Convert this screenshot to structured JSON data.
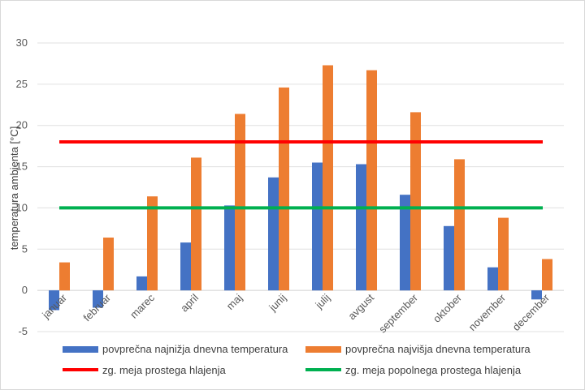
{
  "chart_data": {
    "type": "bar",
    "title": "",
    "xlabel": "",
    "ylabel": "temperatura ambienta [°C]",
    "ylim": [
      -5,
      30
    ],
    "yticks": [
      "-5",
      "0",
      "5",
      "10",
      "15",
      "20",
      "25",
      "30"
    ],
    "grid": true,
    "legend_position": "bottom",
    "categories": [
      "januar",
      "februar",
      "marec",
      "april",
      "maj",
      "junij",
      "julij",
      "avgust",
      "september",
      "oktober",
      "november",
      "december"
    ],
    "series": [
      {
        "name": "povprečna najnižja dnevna temperatura",
        "color": "#4472c4",
        "values": [
          -2.4,
          -2.1,
          1.7,
          5.8,
          10.3,
          13.7,
          15.5,
          15.3,
          11.6,
          7.8,
          2.8,
          -1.1
        ]
      },
      {
        "name": "povprečna najvišja dnevna temperatura",
        "color": "#ed7d31",
        "values": [
          3.4,
          6.4,
          11.4,
          16.1,
          21.4,
          24.6,
          27.3,
          26.7,
          21.6,
          15.9,
          8.8,
          3.8
        ]
      }
    ],
    "reference_lines": [
      {
        "name": "zg. meja prostega hlajenja",
        "value": 18,
        "color": "#ff0000"
      },
      {
        "name": "zg. meja popolnega prostega hlajenja",
        "value": 10,
        "color": "#00b050"
      }
    ]
  }
}
